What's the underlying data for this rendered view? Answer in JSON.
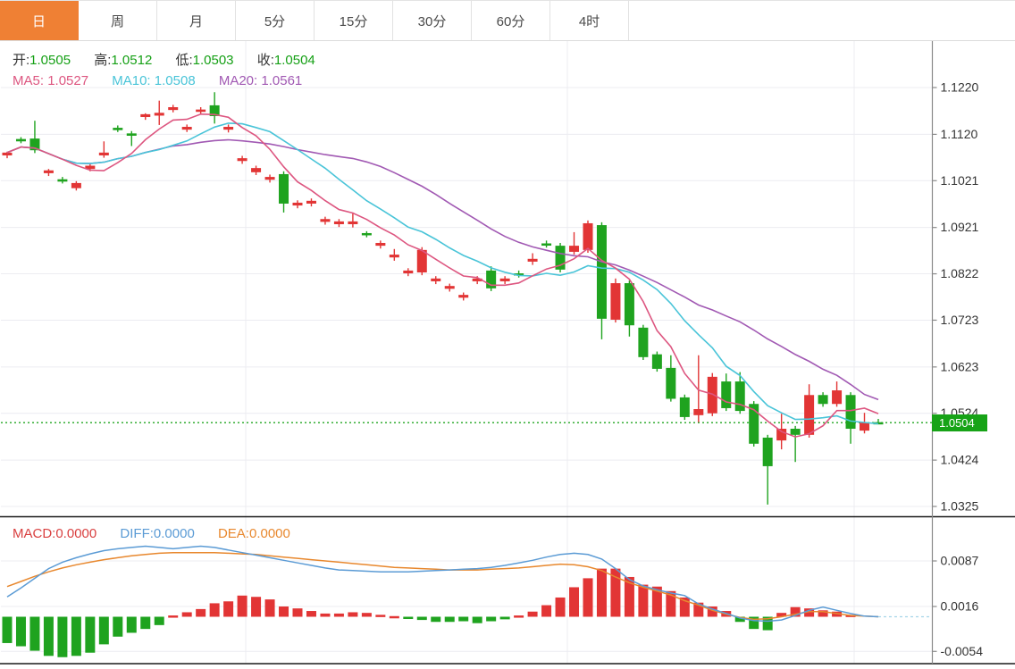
{
  "tabs": {
    "items": [
      {
        "label": "日",
        "active": true
      },
      {
        "label": "周",
        "active": false
      },
      {
        "label": "月",
        "active": false
      },
      {
        "label": "5分",
        "active": false
      },
      {
        "label": "15分",
        "active": false
      },
      {
        "label": "30分",
        "active": false
      },
      {
        "label": "60分",
        "active": false
      },
      {
        "label": "4时",
        "active": false
      }
    ]
  },
  "legend_ohlc": {
    "open_label": "开:",
    "open": "1.0505",
    "high_label": "高:",
    "high": "1.0512",
    "low_label": "低:",
    "low": "1.0503",
    "close_label": "收:",
    "close": "1.0504"
  },
  "legend_ma": {
    "ma5_label": "MA5:",
    "ma5": "1.0527",
    "ma10_label": "MA10:",
    "ma10": "1.0508",
    "ma20_label": "MA20:",
    "ma20": "1.0561"
  },
  "legend_macd": {
    "macd_label": "MACD:",
    "macd": "0.0000",
    "diff_label": "DIFF:",
    "diff": "0.0000",
    "dea_label": "DEA:",
    "dea": "0.0000"
  },
  "price_axis": {
    "labels": [
      "1.1220",
      "1.1120",
      "1.1021",
      "1.0921",
      "1.0822",
      "1.0723",
      "1.0623",
      "1.0524",
      "1.0424",
      "1.0325"
    ],
    "badge": "1.0504"
  },
  "macd_axis": {
    "labels": [
      "0.0087",
      "0.0016",
      "-0.0054"
    ]
  },
  "colors": {
    "up": "#e23535",
    "down": "#1fa31f",
    "ma5": "#dd5680",
    "ma10": "#49c4d8",
    "ma20": "#a159b3",
    "diff": "#5b9bd5",
    "dea": "#e8882e",
    "accent": "#ef8034",
    "badge_bg": "#17a317",
    "price_line": "#1fa51f",
    "grid": "#ececf1",
    "axis": "#8a8a8a",
    "text": "#333333"
  },
  "chart_data": {
    "type": "candlestick",
    "title": "",
    "legend_position": "top-left",
    "grid": true,
    "price_panel": {
      "ylim": [
        1.0325,
        1.122
      ],
      "last_price": 1.0504,
      "ma_periods": [
        5,
        10,
        20
      ],
      "candles_ohlc": [
        [
          1.1075,
          1.1083,
          1.1069,
          1.1081
        ],
        [
          1.111,
          1.1114,
          1.1101,
          1.1105
        ],
        [
          1.1111,
          1.1149,
          1.108,
          1.1086
        ],
        [
          1.1037,
          1.1046,
          1.1031,
          1.1043
        ],
        [
          1.1024,
          1.1029,
          1.1015,
          1.1019
        ],
        [
          1.1005,
          1.102,
          1.1,
          1.1016
        ],
        [
          1.1046,
          1.1057,
          1.1041,
          1.1053
        ],
        [
          1.1075,
          1.1105,
          1.107,
          1.1081
        ],
        [
          1.1134,
          1.1139,
          1.1125,
          1.1129
        ],
        [
          1.1122,
          1.1127,
          1.1095,
          1.1117
        ],
        [
          1.1157,
          1.1165,
          1.1151,
          1.1163
        ],
        [
          1.116,
          1.1192,
          1.114,
          1.1166
        ],
        [
          1.1172,
          1.1183,
          1.1167,
          1.1178
        ],
        [
          1.113,
          1.1141,
          1.1125,
          1.1136
        ],
        [
          1.1168,
          1.1178,
          1.1162,
          1.1173
        ],
        [
          1.1182,
          1.121,
          1.1143,
          1.1159
        ],
        [
          1.113,
          1.1141,
          1.1124,
          1.1136
        ],
        [
          1.1063,
          1.1074,
          1.1057,
          1.1069
        ],
        [
          1.1039,
          1.1053,
          1.1033,
          1.1048
        ],
        [
          1.1023,
          1.1034,
          1.1017,
          1.1029
        ],
        [
          1.1035,
          1.1041,
          1.0953,
          1.0972
        ],
        [
          1.0968,
          1.0979,
          1.0962,
          1.0974
        ],
        [
          1.0972,
          1.0983,
          1.0966,
          1.0978
        ],
        [
          1.0933,
          1.0944,
          1.0927,
          1.0939
        ],
        [
          1.0928,
          1.0939,
          1.0922,
          1.0934
        ],
        [
          1.0928,
          1.0953,
          1.0921,
          1.0934
        ],
        [
          1.0909,
          1.0913,
          1.09,
          1.0906
        ],
        [
          1.0882,
          1.0893,
          1.0876,
          1.0888
        ],
        [
          1.0857,
          1.0875,
          1.085,
          1.0863
        ],
        [
          1.0823,
          1.0834,
          1.0817,
          1.0829
        ],
        [
          1.0825,
          1.0879,
          1.0819,
          1.0873
        ],
        [
          1.0806,
          1.0817,
          1.08,
          1.0812
        ],
        [
          1.079,
          1.0801,
          1.0784,
          1.0796
        ],
        [
          1.0771,
          1.0782,
          1.0765,
          1.0777
        ],
        [
          1.0806,
          1.0817,
          1.08,
          1.0812
        ],
        [
          1.0829,
          1.0838,
          1.0785,
          1.0791
        ],
        [
          1.0806,
          1.0817,
          1.08,
          1.0812
        ],
        [
          1.0823,
          1.0829,
          1.0814,
          1.082
        ],
        [
          1.0848,
          1.0866,
          1.0841,
          1.0854
        ],
        [
          1.0887,
          1.0893,
          1.0878,
          1.0884
        ],
        [
          1.0882,
          1.0888,
          1.0825,
          1.0831
        ],
        [
          1.0869,
          1.0911,
          1.0863,
          1.0882
        ],
        [
          1.0873,
          1.0936,
          1.0867,
          1.093
        ],
        [
          1.0926,
          1.0932,
          1.0682,
          1.0726
        ],
        [
          1.0724,
          1.0812,
          1.0718,
          1.0802
        ],
        [
          1.0802,
          1.0808,
          1.0688,
          1.0712
        ],
        [
          1.0707,
          1.0713,
          1.0638,
          1.0644
        ],
        [
          1.065,
          1.0656,
          1.0613,
          1.0619
        ],
        [
          1.0621,
          1.0648,
          1.0549,
          1.0555
        ],
        [
          1.0558,
          1.0564,
          1.051,
          1.0516
        ],
        [
          1.052,
          1.0648,
          1.0505,
          1.0533
        ],
        [
          1.0524,
          1.061,
          1.0518,
          1.0602
        ],
        [
          1.0592,
          1.0609,
          1.0529,
          1.0535
        ],
        [
          1.0592,
          1.0612,
          1.0523,
          1.0529
        ],
        [
          1.0544,
          1.055,
          1.0453,
          1.0459
        ],
        [
          1.0472,
          1.0478,
          1.0329,
          1.0411
        ],
        [
          1.0466,
          1.0523,
          1.0447,
          1.0491
        ],
        [
          1.0491,
          1.0497,
          1.042,
          1.0478
        ],
        [
          1.0478,
          1.0586,
          1.0472,
          1.0563
        ],
        [
          1.0563,
          1.0569,
          1.0538,
          1.0544
        ],
        [
          1.0544,
          1.0592,
          1.0538,
          1.0573
        ],
        [
          1.0563,
          1.0569,
          1.0459,
          1.0491
        ],
        [
          1.0487,
          1.0525,
          1.0481,
          1.0504
        ],
        [
          1.0505,
          1.0512,
          1.0503,
          1.0504
        ]
      ]
    },
    "macd_panel": {
      "ylim": [
        -0.0068,
        0.01
      ],
      "histogram": [
        -0.0041,
        -0.0046,
        -0.0053,
        -0.0061,
        -0.0063,
        -0.0061,
        -0.0056,
        -0.0043,
        -0.0031,
        -0.0025,
        -0.0019,
        -0.0013,
        0.0002,
        0.0007,
        0.0012,
        0.0021,
        0.0024,
        0.0033,
        0.0031,
        0.0027,
        0.0016,
        0.0013,
        0.0009,
        0.0005,
        0.0005,
        0.0007,
        0.0006,
        0.0003,
        0.0001,
        -0.0002,
        -0.0005,
        -0.0008,
        -0.0008,
        -0.0007,
        -0.001,
        -0.0007,
        -0.0004,
        0.0002,
        0.0008,
        0.0018,
        0.003,
        0.0046,
        0.006,
        0.0075,
        0.0075,
        0.0062,
        0.005,
        0.0047,
        0.004,
        0.003,
        0.0022,
        0.0016,
        0.0009,
        -0.0008,
        -0.0019,
        -0.0021,
        0.0006,
        0.0015,
        0.0013,
        0.001,
        0.0008,
        0.0003,
        0.0,
        0.0
      ],
      "diff_line": [
        0.0031,
        0.0045,
        0.006,
        0.0075,
        0.0085,
        0.0092,
        0.0098,
        0.0103,
        0.0106,
        0.0108,
        0.011,
        0.0108,
        0.0106,
        0.0108,
        0.011,
        0.0108,
        0.0104,
        0.01,
        0.0096,
        0.0092,
        0.0088,
        0.0084,
        0.008,
        0.0076,
        0.0073,
        0.0072,
        0.0071,
        0.007,
        0.007,
        0.007,
        0.0071,
        0.0072,
        0.0073,
        0.0074,
        0.0075,
        0.0077,
        0.008,
        0.0084,
        0.0088,
        0.0093,
        0.0097,
        0.0099,
        0.0097,
        0.009,
        0.0075,
        0.0058,
        0.0048,
        0.0042,
        0.0037,
        0.0033,
        0.002,
        0.0012,
        0.0005,
        -0.0002,
        -0.0006,
        -0.0007,
        -0.0005,
        0.0002,
        0.001,
        0.0015,
        0.001,
        0.0005,
        0.0001,
        0.0
      ],
      "dea_line": [
        0.0047,
        0.0055,
        0.0063,
        0.007,
        0.0076,
        0.0081,
        0.0085,
        0.0089,
        0.0092,
        0.0095,
        0.0097,
        0.0099,
        0.01,
        0.01,
        0.01,
        0.01,
        0.0099,
        0.0098,
        0.0097,
        0.0095,
        0.0093,
        0.0091,
        0.0089,
        0.0087,
        0.0085,
        0.0083,
        0.0081,
        0.0079,
        0.0077,
        0.0076,
        0.0075,
        0.0074,
        0.0073,
        0.0073,
        0.0073,
        0.0074,
        0.0075,
        0.0076,
        0.0078,
        0.008,
        0.0082,
        0.0081,
        0.0078,
        0.0072,
        0.0062,
        0.0053,
        0.0046,
        0.004,
        0.0034,
        0.0025,
        0.0018,
        0.001,
        0.0004,
        -0.0001,
        -0.0004,
        -0.0003,
        0.0,
        0.0004,
        0.0008,
        0.0008,
        0.0005,
        0.0002,
        0.0001,
        0.0
      ]
    }
  }
}
